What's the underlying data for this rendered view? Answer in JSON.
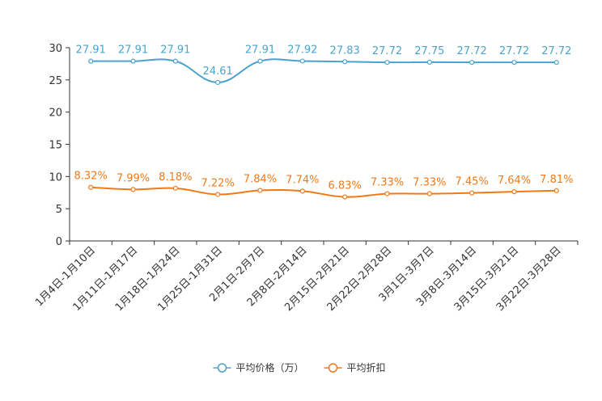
{
  "chart_data": {
    "type": "line",
    "title": "",
    "xlabel": "",
    "ylabel": "",
    "ylim": [
      0,
      30
    ],
    "yticks": [
      0,
      5,
      10,
      15,
      20,
      25,
      30
    ],
    "grid": false,
    "legend_position": "bottom",
    "categories": [
      "1月4日-1月10日",
      "1月11日-1月17日",
      "1月18日-1月24日",
      "1月25日-1月31日",
      "2月1日-2月7日",
      "2月8日-2月14日",
      "2月15日-2月21日",
      "2月22日-2月28日",
      "3月1日-3月7日",
      "3月8日-3月14日",
      "3月15日-3月21日",
      "3月22日-3月28日"
    ],
    "series": [
      {
        "name": "平均价格（万）",
        "color": "#4aa3cd",
        "values": [
          27.91,
          27.91,
          27.91,
          24.61,
          27.91,
          27.92,
          27.83,
          27.72,
          27.75,
          27.72,
          27.72,
          27.72
        ],
        "labels": [
          "27.91",
          "27.91",
          "27.91",
          "24.61",
          "27.91",
          "27.92",
          "27.83",
          "27.72",
          "27.75",
          "27.72",
          "27.72",
          "27.72"
        ]
      },
      {
        "name": "平均折扣",
        "color": "#f07a18",
        "values": [
          8.32,
          7.99,
          8.18,
          7.22,
          7.84,
          7.74,
          6.83,
          7.33,
          7.33,
          7.45,
          7.64,
          7.81
        ],
        "labels": [
          "8.32%",
          "7.99%",
          "8.18%",
          "7.22%",
          "7.84%",
          "7.74%",
          "6.83%",
          "7.33%",
          "7.33%",
          "7.45%",
          "7.64%",
          "7.81%"
        ]
      }
    ]
  }
}
